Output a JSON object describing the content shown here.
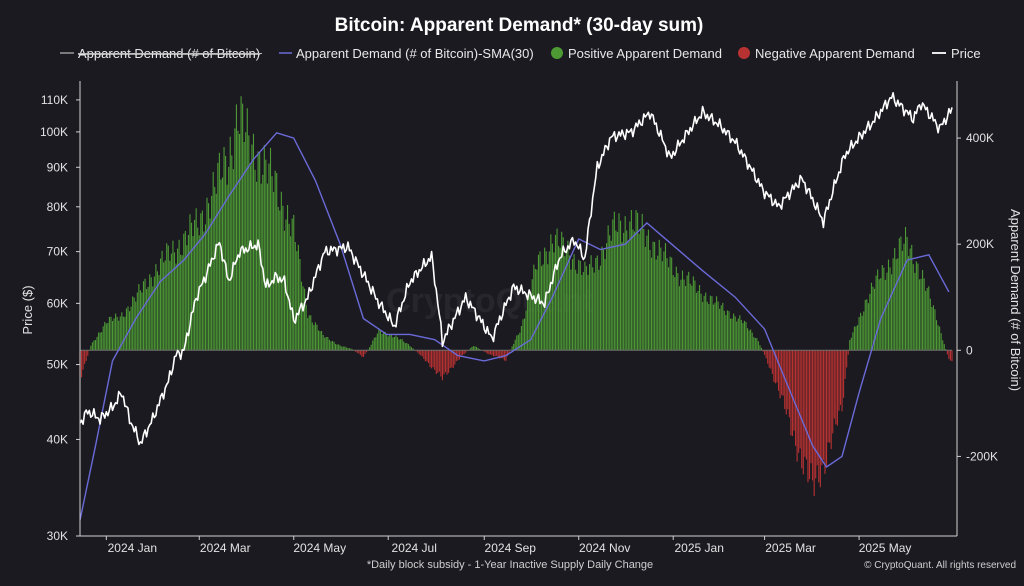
{
  "chart_data": {
    "type": "bar+line",
    "title": "Bitcoin: Apparent Demand* (30-day sum)",
    "legend": [
      {
        "label": "Apparent Demand (# of Bitcoin)",
        "color": "#9a9a9a",
        "struck": true
      },
      {
        "label": "Apparent Demand (# of Bitcoin)-SMA(30)",
        "color": "#6a6ad8"
      },
      {
        "label": "Positive Apparent Demand",
        "color": "#4d9a35"
      },
      {
        "label": "Negative Apparent Demand",
        "color": "#b83232"
      },
      {
        "label": "Price",
        "color": "#ffffff"
      }
    ],
    "ylabel_left": "Price ($)",
    "ylabel_right": "Apparent Demand (# of Bitcoin)",
    "left_axis": {
      "scale": "log",
      "ylim": [
        30000,
        115000
      ],
      "ticks": [
        30000,
        40000,
        50000,
        60000,
        70000,
        80000,
        90000,
        100000,
        110000
      ],
      "tick_labels": [
        "30K",
        "40K",
        "50K",
        "60K",
        "70K",
        "80K",
        "90K",
        "100K",
        "110K"
      ]
    },
    "right_axis": {
      "ylim": [
        -350000,
        500000
      ],
      "ticks": [
        -200000,
        0,
        200000,
        400000
      ],
      "tick_labels": [
        "-200K",
        "0",
        "200K",
        "400K"
      ]
    },
    "x_range": [
      "2023-12-15",
      "2025-06-30"
    ],
    "x_ticks": [
      {
        "label": "2024 Jan",
        "date": "2024-01-01"
      },
      {
        "label": "2024 Mar",
        "date": "2024-03-01"
      },
      {
        "label": "2024 May",
        "date": "2024-05-01"
      },
      {
        "label": "2024 Jul",
        "date": "2024-07-01"
      },
      {
        "label": "2024 Sep",
        "date": "2024-09-01"
      },
      {
        "label": "2024 Nov",
        "date": "2024-11-01"
      },
      {
        "label": "2025 Jan",
        "date": "2025-01-01"
      },
      {
        "label": "2025 Mar",
        "date": "2025-03-01"
      },
      {
        "label": "2025 May",
        "date": "2025-05-01"
      }
    ],
    "demand_series": {
      "name": "Apparent Demand (# of Bitcoin)",
      "unit": "BTC",
      "points": [
        [
          "2023-12-15",
          -60000
        ],
        [
          "2023-12-22",
          10000
        ],
        [
          "2024-01-01",
          60000
        ],
        [
          "2024-01-10",
          70000
        ],
        [
          "2024-01-20",
          110000
        ],
        [
          "2024-01-31",
          160000
        ],
        [
          "2024-02-10",
          200000
        ],
        [
          "2024-02-20",
          230000
        ],
        [
          "2024-03-01",
          270000
        ],
        [
          "2024-03-10",
          330000
        ],
        [
          "2024-03-20",
          410000
        ],
        [
          "2024-03-26",
          490000
        ],
        [
          "2024-04-01",
          440000
        ],
        [
          "2024-04-10",
          400000
        ],
        [
          "2024-04-20",
          340000
        ],
        [
          "2024-05-01",
          250000
        ],
        [
          "2024-05-10",
          80000
        ],
        [
          "2024-05-20",
          30000
        ],
        [
          "2024-05-31",
          10000
        ],
        [
          "2024-06-08",
          2000
        ],
        [
          "2024-06-15",
          -15000
        ],
        [
          "2024-06-25",
          40000
        ],
        [
          "2024-07-05",
          30000
        ],
        [
          "2024-07-15",
          10000
        ],
        [
          "2024-07-25",
          -20000
        ],
        [
          "2024-08-05",
          -60000
        ],
        [
          "2024-08-15",
          -20000
        ],
        [
          "2024-08-25",
          10000
        ],
        [
          "2024-09-05",
          -10000
        ],
        [
          "2024-09-15",
          -20000
        ],
        [
          "2024-09-25",
          50000
        ],
        [
          "2024-10-05",
          180000
        ],
        [
          "2024-10-15",
          230000
        ],
        [
          "2024-10-25",
          210000
        ],
        [
          "2024-11-05",
          160000
        ],
        [
          "2024-11-15",
          200000
        ],
        [
          "2024-11-25",
          260000
        ],
        [
          "2024-12-05",
          270000
        ],
        [
          "2024-12-15",
          240000
        ],
        [
          "2024-12-25",
          200000
        ],
        [
          "2025-01-05",
          160000
        ],
        [
          "2025-01-20",
          120000
        ],
        [
          "2025-02-01",
          90000
        ],
        [
          "2025-02-15",
          60000
        ],
        [
          "2025-02-25",
          20000
        ],
        [
          "2025-03-05",
          -40000
        ],
        [
          "2025-03-15",
          -130000
        ],
        [
          "2025-03-25",
          -230000
        ],
        [
          "2025-04-01",
          -290000
        ],
        [
          "2025-04-10",
          -220000
        ],
        [
          "2025-04-20",
          -120000
        ],
        [
          "2025-04-25",
          20000
        ],
        [
          "2025-05-05",
          100000
        ],
        [
          "2025-05-15",
          160000
        ],
        [
          "2025-05-25",
          200000
        ],
        [
          "2025-06-01",
          230000
        ],
        [
          "2025-06-10",
          160000
        ],
        [
          "2025-06-20",
          70000
        ],
        [
          "2025-06-28",
          -20000
        ]
      ]
    },
    "sma_series": {
      "name": "Apparent Demand (# of Bitcoin)-SMA(30)",
      "points": [
        [
          "2023-12-15",
          -320000
        ],
        [
          "2023-12-25",
          -180000
        ],
        [
          "2024-01-05",
          -20000
        ],
        [
          "2024-01-20",
          60000
        ],
        [
          "2024-02-05",
          130000
        ],
        [
          "2024-02-20",
          170000
        ],
        [
          "2024-03-05",
          220000
        ],
        [
          "2024-03-20",
          290000
        ],
        [
          "2024-04-05",
          360000
        ],
        [
          "2024-04-20",
          410000
        ],
        [
          "2024-05-01",
          400000
        ],
        [
          "2024-05-15",
          320000
        ],
        [
          "2024-05-31",
          200000
        ],
        [
          "2024-06-15",
          60000
        ],
        [
          "2024-06-30",
          30000
        ],
        [
          "2024-07-15",
          30000
        ],
        [
          "2024-07-31",
          20000
        ],
        [
          "2024-08-15",
          -10000
        ],
        [
          "2024-09-01",
          -20000
        ],
        [
          "2024-09-15",
          -10000
        ],
        [
          "2024-10-01",
          20000
        ],
        [
          "2024-10-15",
          100000
        ],
        [
          "2024-11-01",
          210000
        ],
        [
          "2024-11-15",
          190000
        ],
        [
          "2024-12-01",
          200000
        ],
        [
          "2024-12-15",
          240000
        ],
        [
          "2024-12-31",
          200000
        ],
        [
          "2025-01-20",
          150000
        ],
        [
          "2025-02-10",
          100000
        ],
        [
          "2025-03-01",
          40000
        ],
        [
          "2025-03-15",
          -60000
        ],
        [
          "2025-04-01",
          -180000
        ],
        [
          "2025-04-10",
          -220000
        ],
        [
          "2025-04-20",
          -200000
        ],
        [
          "2025-05-01",
          -80000
        ],
        [
          "2025-05-15",
          60000
        ],
        [
          "2025-06-01",
          170000
        ],
        [
          "2025-06-15",
          180000
        ],
        [
          "2025-06-28",
          110000
        ]
      ]
    },
    "price_series": {
      "name": "Price",
      "unit": "USD",
      "points": [
        [
          "2023-12-15",
          42000
        ],
        [
          "2023-12-20",
          43500
        ],
        [
          "2023-12-28",
          42500
        ],
        [
          "2024-01-05",
          44000
        ],
        [
          "2024-01-11",
          46000
        ],
        [
          "2024-01-16",
          42500
        ],
        [
          "2024-01-23",
          39500
        ],
        [
          "2024-01-31",
          42500
        ],
        [
          "2024-02-10",
          47500
        ],
        [
          "2024-02-15",
          51500
        ],
        [
          "2024-02-20",
          52000
        ],
        [
          "2024-02-28",
          61000
        ],
        [
          "2024-03-05",
          65000
        ],
        [
          "2024-03-14",
          72000
        ],
        [
          "2024-03-20",
          64000
        ],
        [
          "2024-03-27",
          70000
        ],
        [
          "2024-04-08",
          71500
        ],
        [
          "2024-04-13",
          63000
        ],
        [
          "2024-04-20",
          65000
        ],
        [
          "2024-04-25",
          64000
        ],
        [
          "2024-05-01",
          57000
        ],
        [
          "2024-05-10",
          61000
        ],
        [
          "2024-05-21",
          70000
        ],
        [
          "2024-06-05",
          71000
        ],
        [
          "2024-06-12",
          67000
        ],
        [
          "2024-06-24",
          60500
        ],
        [
          "2024-07-05",
          56000
        ],
        [
          "2024-07-15",
          64000
        ],
        [
          "2024-07-29",
          69000
        ],
        [
          "2024-08-05",
          53500
        ],
        [
          "2024-08-20",
          61000
        ],
        [
          "2024-09-06",
          54000
        ],
        [
          "2024-09-20",
          63000
        ],
        [
          "2024-10-10",
          60000
        ],
        [
          "2024-10-20",
          69000
        ],
        [
          "2024-10-29",
          72500
        ],
        [
          "2024-11-05",
          68500
        ],
        [
          "2024-11-13",
          90000
        ],
        [
          "2024-11-22",
          98500
        ],
        [
          "2024-12-05",
          100000
        ],
        [
          "2024-12-17",
          106000
        ],
        [
          "2024-12-30",
          92500
        ],
        [
          "2025-01-20",
          106000
        ],
        [
          "2025-01-31",
          102000
        ],
        [
          "2025-02-10",
          97000
        ],
        [
          "2025-02-28",
          84000
        ],
        [
          "2025-03-10",
          80000
        ],
        [
          "2025-03-25",
          87000
        ],
        [
          "2025-04-08",
          76500
        ],
        [
          "2025-04-22",
          93500
        ],
        [
          "2025-05-10",
          103000
        ],
        [
          "2025-05-22",
          111000
        ],
        [
          "2025-06-05",
          104000
        ],
        [
          "2025-06-10",
          109000
        ],
        [
          "2025-06-22",
          101000
        ],
        [
          "2025-06-30",
          107000
        ]
      ]
    }
  },
  "footnote": "*Daily block subsidy - 1-Year Inactive Supply Daily Change",
  "source": "© CryptoQuant. All rights reserved",
  "watermark": "CryptoQuant"
}
